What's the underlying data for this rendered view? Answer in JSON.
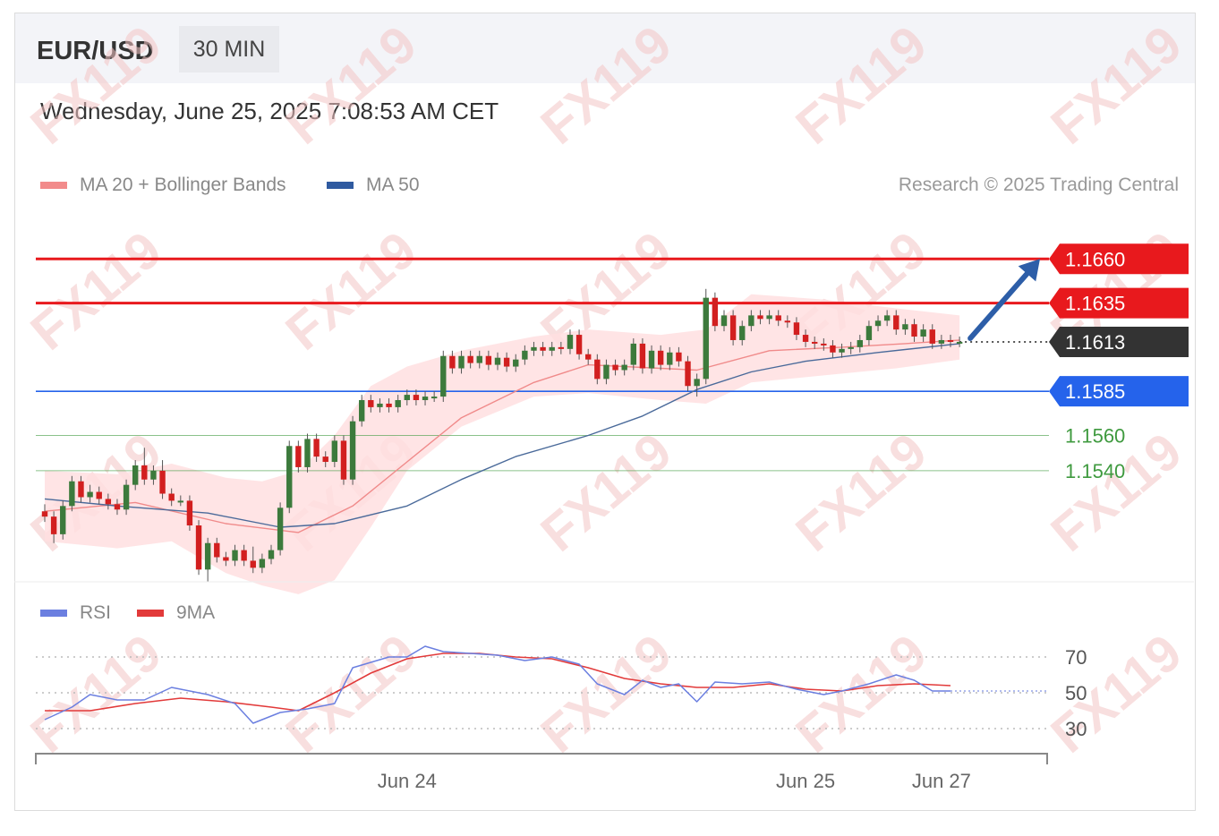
{
  "header": {
    "symbol": "EUR/USD",
    "timeframe": "30 MIN",
    "datetime": "Wednesday, June 25, 2025 7:08:53 AM CET"
  },
  "legend": {
    "ma20": "MA 20 + Bollinger Bands",
    "ma50": "MA 50",
    "rsi": "RSI",
    "rsi_ma": "9MA"
  },
  "credit": "Research © 2025 Trading Central",
  "watermark": "FX119",
  "colors": {
    "up": "#3c7a3c",
    "down": "#d21f1f",
    "resistance": "#e8191d",
    "support": "#2563eb",
    "support2": "#3f9a3f",
    "current": "#333333",
    "ma20": "#f08a8a",
    "band": "#ffdfe0",
    "ma50": "#4a6a9a",
    "rsi": "#6b7fe0",
    "rsi_ma": "#e23a3a"
  },
  "chart_data": [
    {
      "type": "candlestick",
      "ylim": [
        1.1473,
        1.1686
      ],
      "levels": [
        {
          "value": 1.166,
          "label": "1.1660",
          "kind": "resistance"
        },
        {
          "value": 1.1635,
          "label": "1.1635",
          "kind": "resistance"
        },
        {
          "value": 1.1613,
          "label": "1.1613",
          "kind": "current"
        },
        {
          "value": 1.1585,
          "label": "1.1585",
          "kind": "support"
        },
        {
          "value": 1.156,
          "label": "1.1560",
          "kind": "support2"
        },
        {
          "value": 1.154,
          "label": "1.1540",
          "kind": "support2"
        }
      ],
      "forecast_target": 1.166,
      "candles": [
        [
          1.1517,
          1.1514,
          1.1521,
          1.1511
        ],
        [
          1.1514,
          1.1504,
          1.1517,
          1.1499
        ],
        [
          1.1504,
          1.152,
          1.1523,
          1.1501
        ],
        [
          1.152,
          1.1534,
          1.1537,
          1.1517
        ],
        [
          1.1534,
          1.1525,
          1.1537,
          1.1522
        ],
        [
          1.1525,
          1.1528,
          1.1532,
          1.1522
        ],
        [
          1.1528,
          1.1524,
          1.1531,
          1.1521
        ],
        [
          1.1524,
          1.1521,
          1.1527,
          1.1518
        ],
        [
          1.1521,
          1.1518,
          1.1524,
          1.1515
        ],
        [
          1.1518,
          1.1532,
          1.1535,
          1.1515
        ],
        [
          1.1532,
          1.1543,
          1.1546,
          1.1529
        ],
        [
          1.1543,
          1.1535,
          1.1553,
          1.1532
        ],
        [
          1.1535,
          1.154,
          1.1543,
          1.1532
        ],
        [
          1.154,
          1.1527,
          1.1546,
          1.1524
        ],
        [
          1.1527,
          1.1523,
          1.153,
          1.152
        ],
        [
          1.1523,
          1.1523,
          1.1526,
          1.152
        ],
        [
          1.1523,
          1.1509,
          1.1526,
          1.1506
        ],
        [
          1.1509,
          1.1484,
          1.1512,
          1.1481
        ],
        [
          1.1484,
          1.1499,
          1.1502,
          1.1477
        ],
        [
          1.1499,
          1.1491,
          1.1502,
          1.1488
        ],
        [
          1.1491,
          1.1489,
          1.1494,
          1.1486
        ],
        [
          1.1489,
          1.1495,
          1.1498,
          1.1486
        ],
        [
          1.1495,
          1.1489,
          1.1498,
          1.1486
        ],
        [
          1.1489,
          1.1485,
          1.1497,
          1.1482
        ],
        [
          1.1485,
          1.149,
          1.1493,
          1.1482
        ],
        [
          1.149,
          1.1495,
          1.1498,
          1.1487
        ],
        [
          1.1495,
          1.1519,
          1.1522,
          1.1492
        ],
        [
          1.1519,
          1.1554,
          1.1557,
          1.1516
        ],
        [
          1.1554,
          1.1542,
          1.1557,
          1.1539
        ],
        [
          1.1542,
          1.1558,
          1.1561,
          1.1539
        ],
        [
          1.1558,
          1.1548,
          1.1561,
          1.1545
        ],
        [
          1.1548,
          1.1545,
          1.1551,
          1.1542
        ],
        [
          1.1545,
          1.1557,
          1.156,
          1.1542
        ],
        [
          1.1557,
          1.1535,
          1.156,
          1.1532
        ],
        [
          1.1535,
          1.1568,
          1.1571,
          1.1532
        ],
        [
          1.1568,
          1.158,
          1.1583,
          1.1565
        ],
        [
          1.158,
          1.1576,
          1.1583,
          1.1573
        ],
        [
          1.1576,
          1.1578,
          1.1581,
          1.1573
        ],
        [
          1.1578,
          1.1576,
          1.1581,
          1.1573
        ],
        [
          1.1576,
          1.158,
          1.1583,
          1.1573
        ],
        [
          1.158,
          1.1583,
          1.1586,
          1.1577
        ],
        [
          1.1583,
          1.158,
          1.1586,
          1.1577
        ],
        [
          1.158,
          1.1582,
          1.1585,
          1.1577
        ],
        [
          1.1582,
          1.1582,
          1.1585,
          1.1579
        ],
        [
          1.1582,
          1.1605,
          1.1608,
          1.1579
        ],
        [
          1.1605,
          1.1598,
          1.1608,
          1.1595
        ],
        [
          1.1598,
          1.1605,
          1.1608,
          1.1595
        ],
        [
          1.1605,
          1.1601,
          1.1608,
          1.1598
        ],
        [
          1.1601,
          1.1605,
          1.1608,
          1.1598
        ],
        [
          1.1605,
          1.16,
          1.1608,
          1.1597
        ],
        [
          1.16,
          1.1604,
          1.1607,
          1.1597
        ],
        [
          1.1604,
          1.1599,
          1.1607,
          1.1596
        ],
        [
          1.1599,
          1.1603,
          1.1606,
          1.1596
        ],
        [
          1.1603,
          1.1608,
          1.1611,
          1.16
        ],
        [
          1.1608,
          1.161,
          1.1613,
          1.1605
        ],
        [
          1.161,
          1.1608,
          1.1613,
          1.1605
        ],
        [
          1.1608,
          1.161,
          1.1613,
          1.1605
        ],
        [
          1.161,
          1.1609,
          1.1613,
          1.1606
        ],
        [
          1.1609,
          1.1617,
          1.162,
          1.1606
        ],
        [
          1.1617,
          1.1606,
          1.162,
          1.1603
        ],
        [
          1.1606,
          1.1603,
          1.1609,
          1.16
        ],
        [
          1.1603,
          1.1592,
          1.1606,
          1.1589
        ],
        [
          1.1592,
          1.16,
          1.1603,
          1.1589
        ],
        [
          1.16,
          1.1597,
          1.1603,
          1.1594
        ],
        [
          1.1597,
          1.16,
          1.1603,
          1.1594
        ],
        [
          1.16,
          1.1612,
          1.1615,
          1.1597
        ],
        [
          1.1612,
          1.1598,
          1.1615,
          1.1595
        ],
        [
          1.1598,
          1.1608,
          1.1611,
          1.1595
        ],
        [
          1.1608,
          1.16,
          1.1611,
          1.1597
        ],
        [
          1.16,
          1.1607,
          1.161,
          1.1597
        ],
        [
          1.1607,
          1.1602,
          1.161,
          1.1599
        ],
        [
          1.1602,
          1.1588,
          1.1605,
          1.1585
        ],
        [
          1.1588,
          1.1592,
          1.1595,
          1.1582
        ],
        [
          1.1592,
          1.1638,
          1.1643,
          1.1589
        ],
        [
          1.1638,
          1.1622,
          1.1641,
          1.1619
        ],
        [
          1.1622,
          1.1628,
          1.1631,
          1.1619
        ],
        [
          1.1628,
          1.1614,
          1.1631,
          1.1611
        ],
        [
          1.1614,
          1.1622,
          1.1625,
          1.1611
        ],
        [
          1.1622,
          1.1628,
          1.1631,
          1.1619
        ],
        [
          1.1628,
          1.1626,
          1.1631,
          1.1623
        ],
        [
          1.1626,
          1.1628,
          1.1631,
          1.1623
        ],
        [
          1.1628,
          1.1625,
          1.1631,
          1.1622
        ],
        [
          1.1625,
          1.1624,
          1.1628,
          1.1621
        ],
        [
          1.1624,
          1.1617,
          1.1627,
          1.1614
        ],
        [
          1.1617,
          1.1613,
          1.162,
          1.161
        ],
        [
          1.1613,
          1.1612,
          1.1616,
          1.1609
        ],
        [
          1.1612,
          1.1611,
          1.1615,
          1.1608
        ],
        [
          1.1611,
          1.1607,
          1.1614,
          1.1604
        ],
        [
          1.1607,
          1.1609,
          1.1612,
          1.1604
        ],
        [
          1.1609,
          1.161,
          1.1613,
          1.1606
        ],
        [
          1.161,
          1.1614,
          1.1617,
          1.1607
        ],
        [
          1.1614,
          1.1622,
          1.1625,
          1.1611
        ],
        [
          1.1622,
          1.1625,
          1.1628,
          1.1619
        ],
        [
          1.1625,
          1.1628,
          1.1631,
          1.1622
        ],
        [
          1.1628,
          1.162,
          1.1631,
          1.1617
        ],
        [
          1.162,
          1.1623,
          1.1626,
          1.1617
        ],
        [
          1.1623,
          1.1616,
          1.1626,
          1.1613
        ],
        [
          1.1616,
          1.162,
          1.1623,
          1.1613
        ],
        [
          1.162,
          1.1612,
          1.1623,
          1.1609
        ],
        [
          1.1612,
          1.1614,
          1.1617,
          1.1609
        ],
        [
          1.1614,
          1.1613,
          1.1617,
          1.161
        ],
        [
          1.1613,
          1.1613,
          1.1616,
          1.161
        ]
      ],
      "ma20": [
        [
          0,
          1.1517
        ],
        [
          10,
          1.1522
        ],
        [
          20,
          1.151
        ],
        [
          28,
          1.1505
        ],
        [
          34,
          1.152
        ],
        [
          40,
          1.1545
        ],
        [
          46,
          1.157
        ],
        [
          54,
          1.159
        ],
        [
          60,
          1.16
        ],
        [
          68,
          1.1598
        ],
        [
          72,
          1.1597
        ],
        [
          80,
          1.1608
        ],
        [
          88,
          1.161
        ],
        [
          95,
          1.1612
        ],
        [
          101,
          1.1614
        ]
      ],
      "band_upper": [
        [
          0,
          1.154
        ],
        [
          8,
          1.1538
        ],
        [
          14,
          1.1544
        ],
        [
          20,
          1.1536
        ],
        [
          24,
          1.1534
        ],
        [
          28,
          1.154
        ],
        [
          32,
          1.156
        ],
        [
          36,
          1.1588
        ],
        [
          40,
          1.1599
        ],
        [
          46,
          1.1608
        ],
        [
          54,
          1.1616
        ],
        [
          60,
          1.162
        ],
        [
          68,
          1.1617
        ],
        [
          73,
          1.162
        ],
        [
          78,
          1.164
        ],
        [
          86,
          1.1637
        ],
        [
          94,
          1.1632
        ],
        [
          101,
          1.1628
        ]
      ],
      "band_lower": [
        [
          0,
          1.15
        ],
        [
          8,
          1.1496
        ],
        [
          14,
          1.15
        ],
        [
          20,
          1.1482
        ],
        [
          24,
          1.1475
        ],
        [
          28,
          1.147
        ],
        [
          32,
          1.1478
        ],
        [
          36,
          1.1508
        ],
        [
          40,
          1.154
        ],
        [
          46,
          1.1565
        ],
        [
          54,
          1.1582
        ],
        [
          60,
          1.1584
        ],
        [
          68,
          1.158
        ],
        [
          73,
          1.1578
        ],
        [
          78,
          1.159
        ],
        [
          86,
          1.1594
        ],
        [
          94,
          1.1598
        ],
        [
          101,
          1.1603
        ]
      ],
      "ma50": [
        [
          0,
          1.1524
        ],
        [
          8,
          1.152
        ],
        [
          18,
          1.1516
        ],
        [
          26,
          1.1508
        ],
        [
          32,
          1.151
        ],
        [
          40,
          1.152
        ],
        [
          46,
          1.1535
        ],
        [
          52,
          1.1548
        ],
        [
          60,
          1.156
        ],
        [
          66,
          1.1571
        ],
        [
          72,
          1.1586
        ],
        [
          78,
          1.1596
        ],
        [
          84,
          1.1602
        ],
        [
          92,
          1.1607
        ],
        [
          101,
          1.1612
        ]
      ]
    },
    {
      "type": "line",
      "ylim": [
        23,
        82
      ],
      "yticks": [
        70,
        50,
        30
      ],
      "gridlines": [
        70,
        50,
        30
      ],
      "x_ticks": [
        {
          "index": 40,
          "label": "Jun 24"
        },
        {
          "index": 84,
          "label": "Jun 25"
        },
        {
          "index": 99,
          "label": "Jun 27"
        }
      ],
      "series": [
        {
          "name": "RSI",
          "values": [
            [
              0,
              35
            ],
            [
              3,
              42
            ],
            [
              5,
              49
            ],
            [
              8,
              46
            ],
            [
              11,
              46
            ],
            [
              14,
              53
            ],
            [
              18,
              49
            ],
            [
              21,
              44
            ],
            [
              23,
              33
            ],
            [
              26,
              39
            ],
            [
              29,
              41
            ],
            [
              32,
              44
            ],
            [
              34,
              64
            ],
            [
              36,
              67
            ],
            [
              38,
              70
            ],
            [
              40,
              70
            ],
            [
              42,
              76
            ],
            [
              44,
              73
            ],
            [
              47,
              72
            ],
            [
              50,
              71
            ],
            [
              53,
              68
            ],
            [
              56,
              70
            ],
            [
              59,
              66
            ],
            [
              61,
              55
            ],
            [
              64,
              49
            ],
            [
              66,
              57
            ],
            [
              68,
              53
            ],
            [
              70,
              55
            ],
            [
              72,
              45
            ],
            [
              74,
              56
            ],
            [
              77,
              55
            ],
            [
              80,
              56
            ],
            [
              83,
              52
            ],
            [
              86,
              49
            ],
            [
              88,
              51
            ],
            [
              91,
              55
            ],
            [
              94,
              60
            ],
            [
              96,
              57
            ],
            [
              98,
              51
            ],
            [
              100,
              51
            ]
          ]
        },
        {
          "name": "9MA",
          "values": [
            [
              0,
              40
            ],
            [
              5,
              40
            ],
            [
              10,
              44
            ],
            [
              15,
              47
            ],
            [
              20,
              45
            ],
            [
              25,
              42
            ],
            [
              28,
              40
            ],
            [
              32,
              50
            ],
            [
              36,
              61
            ],
            [
              40,
              69
            ],
            [
              44,
              72
            ],
            [
              48,
              72
            ],
            [
              52,
              70
            ],
            [
              56,
              69
            ],
            [
              60,
              64
            ],
            [
              64,
              58
            ],
            [
              68,
              55
            ],
            [
              72,
              53
            ],
            [
              76,
              53
            ],
            [
              80,
              55
            ],
            [
              84,
              52
            ],
            [
              88,
              51
            ],
            [
              92,
              54
            ],
            [
              96,
              55
            ],
            [
              100,
              54
            ]
          ]
        }
      ]
    }
  ]
}
